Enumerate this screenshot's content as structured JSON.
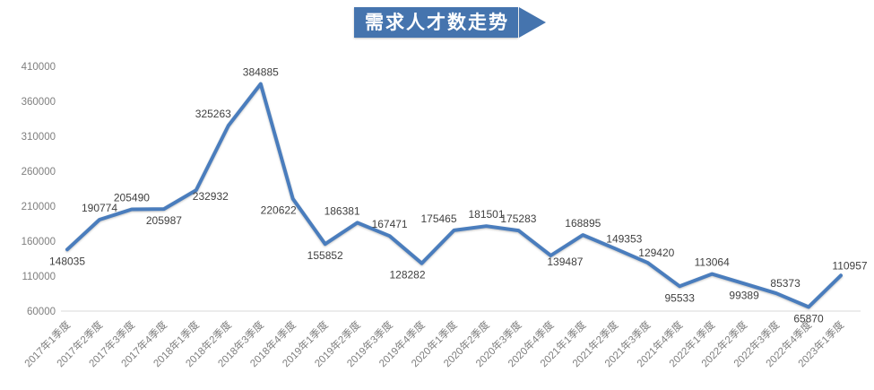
{
  "title": {
    "label": "需求人才数走势"
  },
  "colors": {
    "banner": "#4574AE",
    "banner_text": "#FFFFFF",
    "line": "#4A7DBD",
    "axis_label": "#7F7F7F",
    "data_label": "#3F3F3F",
    "axis_line": "#D9D9D9",
    "background": "#FFFFFF"
  },
  "chart_data": {
    "type": "line",
    "title": "需求人才数走势",
    "xlabel": "",
    "ylabel": "",
    "categories": [
      "2017年1季度",
      "2017年2季度",
      "2017年3季度",
      "2017年4季度",
      "2018年1季度",
      "2018年2季度",
      "2018年3季度",
      "2018年4季度",
      "2019年1季度",
      "2019年2季度",
      "2019年3季度",
      "2019年4季度",
      "2020年1季度",
      "2020年2季度",
      "2020年3季度",
      "2020年4季度",
      "2021年1季度",
      "2021年2季度",
      "2021年3季度",
      "2021年4季度",
      "2022年1季度",
      "2022年2季度",
      "2022年3季度",
      "2022年4季度",
      "2023年1季度"
    ],
    "values": [
      148035,
      190774,
      205490,
      205987,
      232932,
      325263,
      384885,
      220622,
      155852,
      186381,
      167471,
      128282,
      175465,
      181501,
      175283,
      139487,
      168895,
      149353,
      129420,
      95533,
      113064,
      99389,
      85373,
      65870,
      110957
    ],
    "data_label_sides": [
      "below",
      "above",
      "above",
      "below",
      "below-right",
      "above-left",
      "above",
      "below-left",
      "below",
      "above-left",
      "above",
      "below-left",
      "above-left",
      "above",
      "above",
      "below-right",
      "above",
      "above-right",
      "above-right",
      "below",
      "above",
      "below",
      "above-right",
      "below",
      "above-right"
    ],
    "ylim": [
      60000,
      410000
    ],
    "yticks": [
      410000,
      360000,
      310000,
      260000,
      210000,
      160000,
      110000,
      60000
    ],
    "x_tick_rotation": -45,
    "grid": false,
    "legend": "none",
    "data_labels_shown": true
  }
}
